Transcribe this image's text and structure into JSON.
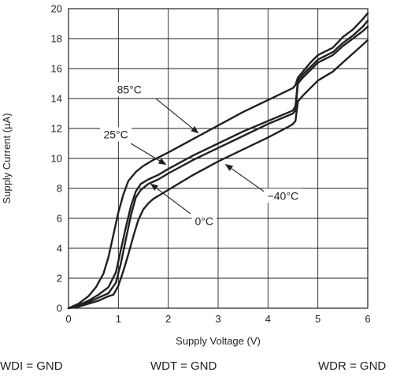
{
  "chart_data": {
    "type": "line",
    "xlabel": "Supply Voltage (V)",
    "ylabel": "Supply Current (µA)",
    "xlim": [
      0,
      6
    ],
    "ylim": [
      0,
      20
    ],
    "x_ticks": [
      "0",
      "1",
      "2",
      "3",
      "4",
      "5",
      "6"
    ],
    "y_ticks": [
      "0",
      "2",
      "4",
      "6",
      "8",
      "10",
      "12",
      "14",
      "16",
      "18",
      "20"
    ],
    "grid": true,
    "legend": "none",
    "line_color": "#231f20",
    "series": [
      {
        "name": "85°C",
        "x": [
          0,
          0.2,
          0.4,
          0.55,
          0.7,
          0.8,
          0.9,
          1.0,
          1.1,
          1.2,
          1.35,
          1.5,
          1.7,
          2.0,
          2.5,
          3.0,
          3.5,
          4.0,
          4.5,
          4.55,
          4.6,
          4.7,
          4.85,
          5.0,
          5.3,
          5.5,
          5.7,
          5.9,
          6.0
        ],
        "y": [
          0,
          0.3,
          0.8,
          1.4,
          2.3,
          3.4,
          4.9,
          6.4,
          7.6,
          8.5,
          9.1,
          9.5,
          9.9,
          10.4,
          11.3,
          12.2,
          13.1,
          13.9,
          14.7,
          14.9,
          15.4,
          15.8,
          16.4,
          16.9,
          17.4,
          18.1,
          18.6,
          19.3,
          19.7
        ]
      },
      {
        "name": "25°C",
        "x": [
          0,
          0.2,
          0.4,
          0.6,
          0.8,
          0.95,
          1.05,
          1.15,
          1.25,
          1.35,
          1.45,
          1.6,
          1.8,
          2.0,
          2.5,
          3.0,
          3.5,
          4.0,
          4.5,
          4.55,
          4.6,
          4.7,
          4.85,
          5.0,
          5.3,
          5.5,
          5.7,
          5.9,
          6.0
        ],
        "y": [
          0,
          0.2,
          0.5,
          0.9,
          1.4,
          2.4,
          3.9,
          5.4,
          6.8,
          7.8,
          8.3,
          8.6,
          8.9,
          9.3,
          10.2,
          11.0,
          11.8,
          12.5,
          13.2,
          13.5,
          15.2,
          15.6,
          16.1,
          16.6,
          17.1,
          17.7,
          18.2,
          18.8,
          19.2
        ]
      },
      {
        "name": "0°C",
        "x": [
          0,
          0.2,
          0.4,
          0.6,
          0.8,
          0.95,
          1.05,
          1.15,
          1.25,
          1.35,
          1.45,
          1.6,
          1.8,
          2.0,
          2.5,
          3.0,
          3.5,
          4.0,
          4.5,
          4.55,
          4.6,
          4.7,
          4.85,
          5.0,
          5.3,
          5.5,
          5.7,
          5.9,
          6.0
        ],
        "y": [
          0,
          0.2,
          0.4,
          0.7,
          1.0,
          1.7,
          3.0,
          4.6,
          6.2,
          7.4,
          7.9,
          8.3,
          8.6,
          9.0,
          9.9,
          10.7,
          11.5,
          12.3,
          13.0,
          13.2,
          15.0,
          15.4,
          15.9,
          16.4,
          16.9,
          17.5,
          18.0,
          18.5,
          18.8
        ]
      },
      {
        "name": "−40°C",
        "x": [
          0,
          0.2,
          0.4,
          0.6,
          0.8,
          0.9,
          1.0,
          1.1,
          1.2,
          1.3,
          1.4,
          1.5,
          1.6,
          1.7,
          1.8,
          2.0,
          2.5,
          3.0,
          3.5,
          4.0,
          4.4,
          4.5,
          4.55,
          4.6,
          4.7,
          4.85,
          5.0,
          5.3,
          5.5,
          5.7,
          5.9,
          6.0
        ],
        "y": [
          0,
          0.1,
          0.3,
          0.5,
          0.8,
          0.9,
          1.5,
          2.5,
          3.6,
          4.8,
          5.9,
          6.6,
          7.0,
          7.3,
          7.5,
          7.9,
          8.9,
          9.8,
          10.6,
          11.4,
          12.1,
          12.3,
          12.5,
          13.8,
          14.2,
          14.7,
          15.2,
          15.8,
          16.4,
          17.0,
          17.6,
          17.9
        ]
      }
    ],
    "annotations": [
      {
        "text": "85°C",
        "label_x": 1.22,
        "label_y": 14.4,
        "arrow_from": [
          1.75,
          14.0
        ],
        "arrow_to": [
          2.6,
          11.7
        ]
      },
      {
        "text": "25°C",
        "label_x": 0.95,
        "label_y": 11.4,
        "arrow_from": [
          1.25,
          11.0
        ],
        "arrow_to": [
          1.95,
          9.6
        ]
      },
      {
        "text": "0°C",
        "label_x": 2.72,
        "label_y": 5.6,
        "arrow_from": [
          2.45,
          6.3
        ],
        "arrow_to": [
          1.65,
          8.3
        ]
      },
      {
        "text": "−40°C",
        "label_x": 4.3,
        "label_y": 7.3,
        "arrow_from": [
          4.0,
          7.6
        ],
        "arrow_to": [
          3.15,
          9.6
        ]
      }
    ]
  },
  "footer": {
    "wdi": "WDI = GND",
    "wdt": "WDT = GND",
    "wdr": "WDR = GND"
  }
}
